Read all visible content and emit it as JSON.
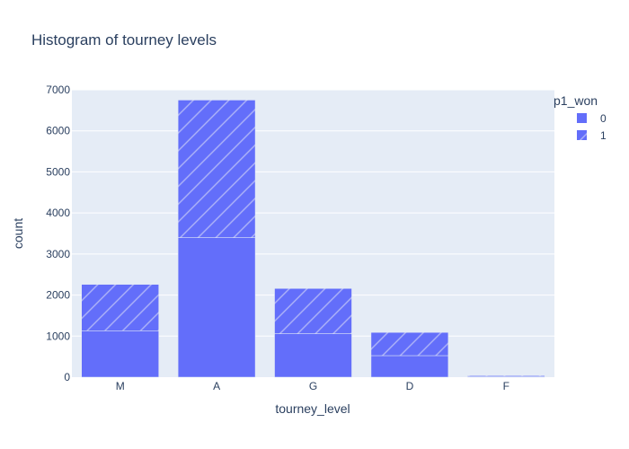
{
  "chart_data": {
    "type": "bar",
    "stacked": true,
    "title": "Histogram of tourney levels",
    "xlabel": "tourney_level",
    "ylabel": "count",
    "categories": [
      "M",
      "A",
      "G",
      "D",
      "F"
    ],
    "series": [
      {
        "name": "0",
        "values": [
          1130,
          3400,
          1060,
          525,
          20
        ],
        "pattern": "solid"
      },
      {
        "name": "1",
        "values": [
          1130,
          3350,
          1100,
          565,
          20
        ],
        "pattern": "diagonal-hatch"
      }
    ],
    "ylim": [
      0,
      7000
    ],
    "yticks": [
      0,
      1000,
      2000,
      3000,
      4000,
      5000,
      6000,
      7000
    ],
    "grid": true,
    "legend": {
      "title": "p1_won",
      "position": "top-right"
    },
    "colors": {
      "bar": "#636efa",
      "plot_bg": "#e5ecf6",
      "grid": "#ffffff",
      "text": "#2a3f5f"
    }
  }
}
